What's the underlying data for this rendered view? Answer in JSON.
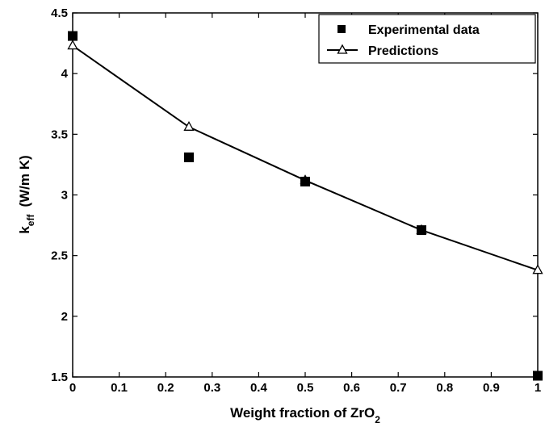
{
  "chart_data": {
    "type": "line",
    "xlabel_main": "Weight fraction of ZrO",
    "xlabel_sub": "2",
    "ylabel_main": "k",
    "ylabel_sub": "eff",
    "ylabel_units": "(W/m K)",
    "xlim": [
      0,
      1
    ],
    "ylim": [
      1.5,
      4.5
    ],
    "xticks": [
      "0",
      "0.1",
      "0.2",
      "0.3",
      "0.4",
      "0.5",
      "0.6",
      "0.7",
      "0.8",
      "0.9",
      "1"
    ],
    "yticks": [
      "1.5",
      "2",
      "2.5",
      "3",
      "3.5",
      "4",
      "4.5"
    ],
    "legend_position": "top-right",
    "grid": false,
    "series": [
      {
        "name": "Experimental data",
        "marker": "filled-square",
        "line": false,
        "x": [
          0,
          0.25,
          0.5,
          0.75,
          1
        ],
        "y": [
          4.31,
          3.31,
          3.11,
          2.71,
          1.51
        ]
      },
      {
        "name": "Predictions",
        "marker": "open-triangle",
        "line": true,
        "x": [
          0,
          0.25,
          0.5,
          0.75,
          1
        ],
        "y": [
          4.23,
          3.56,
          3.12,
          2.71,
          2.38
        ]
      }
    ],
    "colors": {
      "ink": "#000000",
      "background": "#ffffff"
    }
  }
}
